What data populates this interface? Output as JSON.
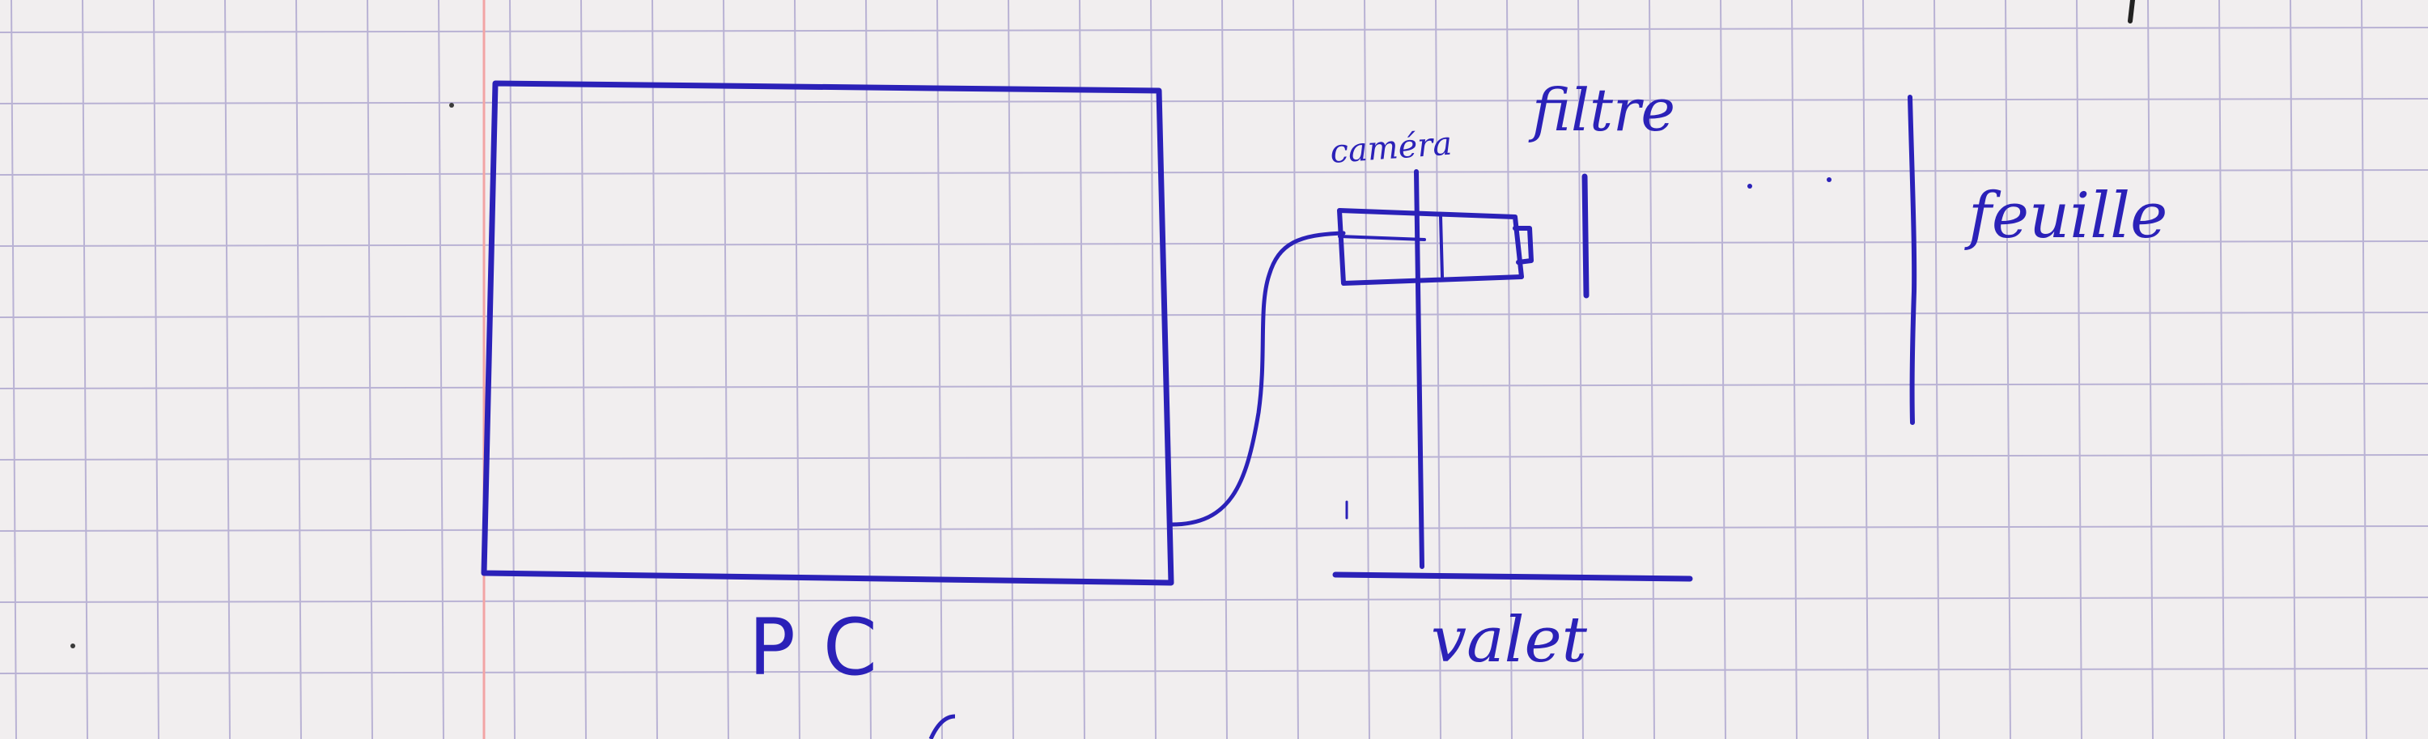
{
  "diagram": {
    "title": "",
    "labels": {
      "pc": "PC",
      "camera": "caméra",
      "filter": "filtre",
      "stand": "valet",
      "sheet": "feuille"
    }
  },
  "colors": {
    "ink": "#2b21b8",
    "paper": "#f1eeef",
    "grid": "#b9b2d4",
    "margin": "#f2a4a4"
  }
}
